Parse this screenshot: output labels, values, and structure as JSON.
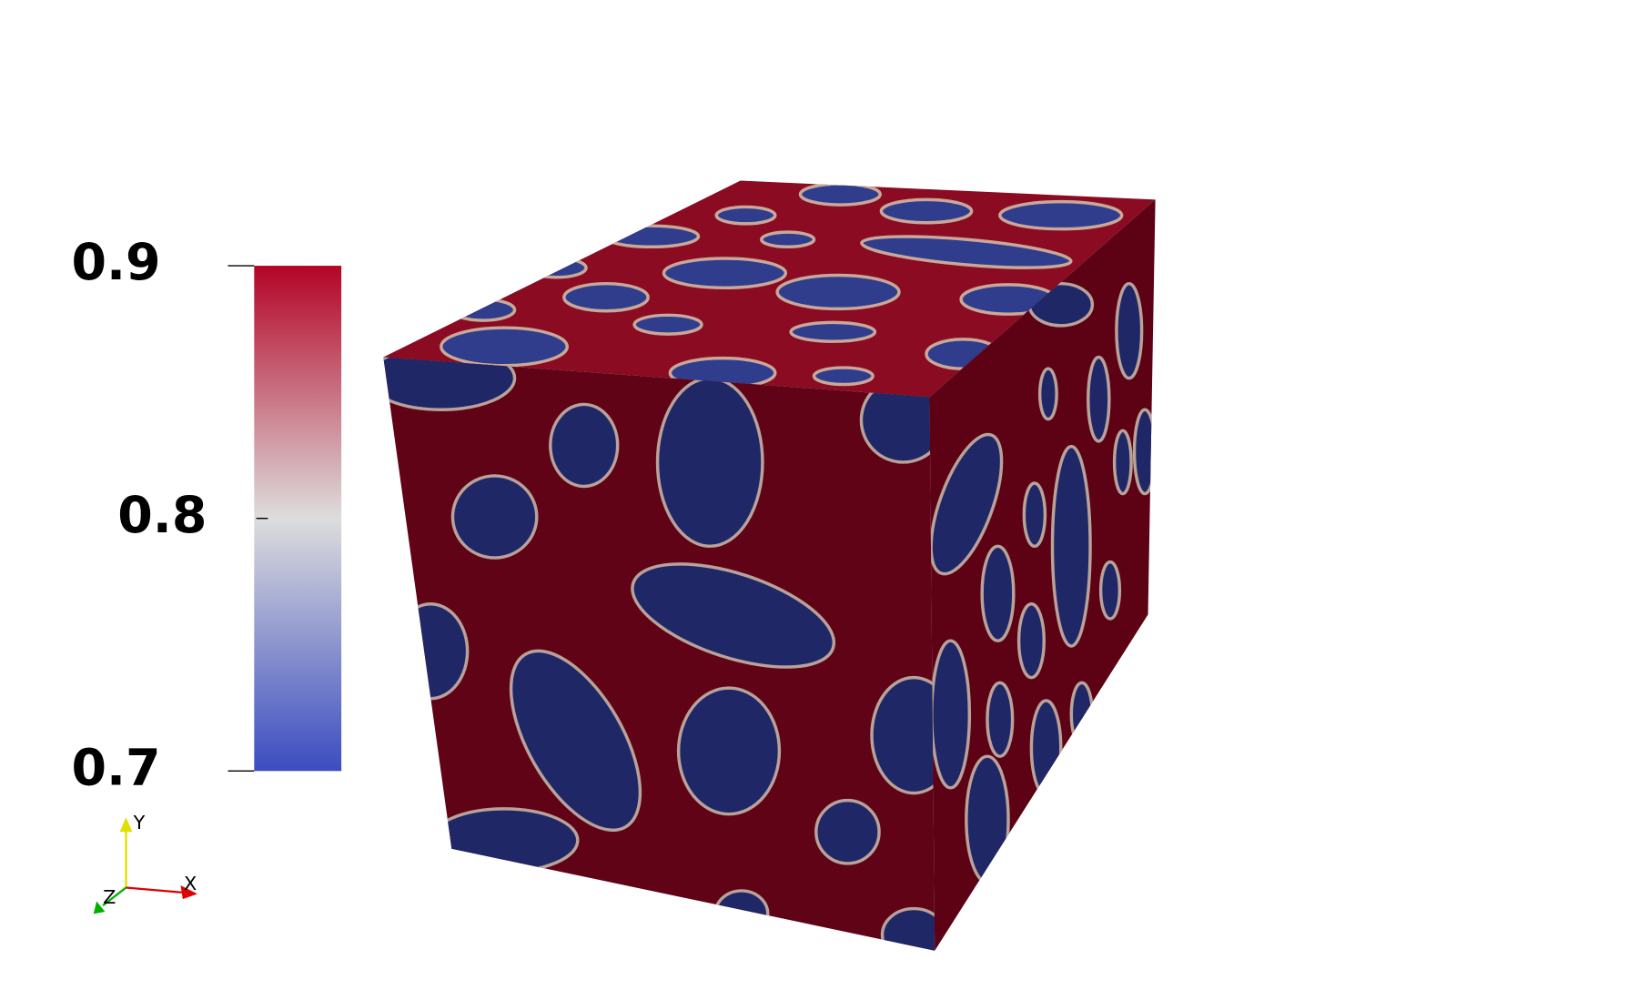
{
  "colorbar": {
    "lim": [
      0.7,
      0.9
    ],
    "ticks": [
      0.7,
      0.8,
      0.9
    ],
    "colors": [
      "#3b4cc0",
      "#dddddd",
      "#b40426"
    ]
  },
  "orientation_axes": {
    "x": "X",
    "y": "Y",
    "z": "Z"
  }
}
